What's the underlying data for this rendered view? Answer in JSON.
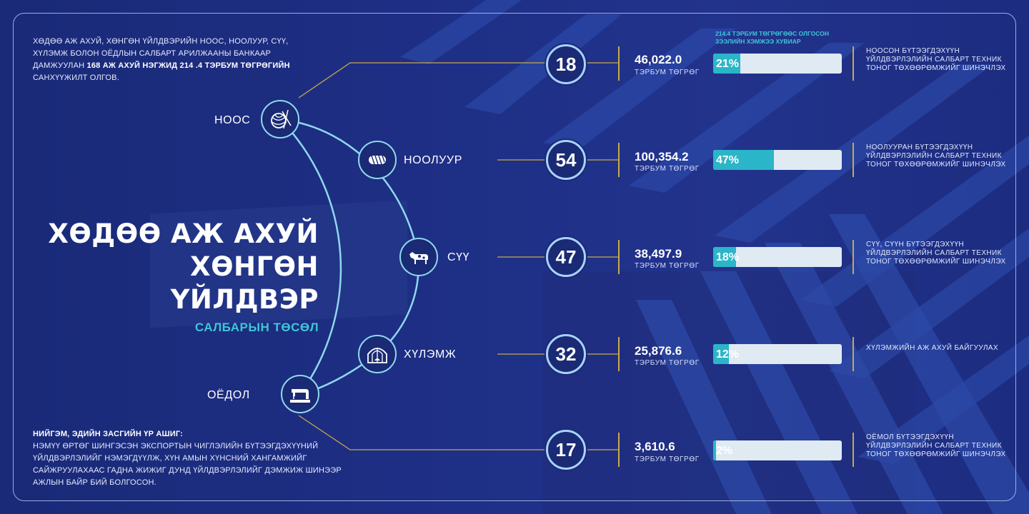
{
  "intro": {
    "text1": "Хөдөө аж ахуй, хөнгөн үйлдвэрийн ноос, ноолуур, сүү, хүлэмж болон оёдлын салбарт арилжааны банкаар дамжуулан ",
    "bold": "168 аж ахуй нэгжид 214 .4 тэрбум төгрөгийн",
    "text2": " санхүүжилт олгов."
  },
  "title": {
    "line1": "ХӨДӨӨ АЖ АХУЙ",
    "line2": "ХӨНГӨН ҮЙЛДВЭР",
    "sub": "САЛБАРЫН ТӨСӨЛ"
  },
  "social": {
    "title": "Нийгэм, эдийн засгийн үр ашиг:",
    "text": "Нэмүү өртөг шингэсэн экспортын чиглэлийн бүтээгдэхүүний үйлдвэрлэлийг нэмэгдүүлж, хүн амын хүнсний хангамжийг сайжруулахаас гадна жижиг дунд үйлдвэрлэлийг дэмжиж шинээр ажлын байр бий болгосон."
  },
  "column_header": "214.4 тэрбум төгрөгөөс олгосон зээлийн хэмжээ хувиар",
  "unit_label": "ТЭРБУМ ТӨГРӨГ",
  "colors": {
    "accent": "#3fc6d6",
    "bar_fill": "#2bb5c8",
    "bar_bg": "#dfeaf3",
    "gold_line": "#c9a94a"
  },
  "rows": [
    {
      "label": "НООС",
      "icon": "yarn-icon",
      "count": "18",
      "amount": "46,022.0",
      "percent_label": "21%",
      "percent": 21,
      "desc": "Ноосон бүтээгдэхүүн үйлдвэрлэлийн салбарт техник тоног төхөөрөмжийг шинэчлэх"
    },
    {
      "label": "НООЛУУР",
      "icon": "wool-roll-icon",
      "count": "54",
      "amount": "100,354.2",
      "percent_label": "47%",
      "percent": 47,
      "desc": "Ноолууран бүтээгдэхүүн үйлдвэрлэлийн салбарт техник тоног төхөөрөмжийг шинэчлэх"
    },
    {
      "label": "СҮҮ",
      "icon": "cow-icon",
      "count": "47",
      "amount": "38,497.9",
      "percent_label": "18%",
      "percent": 18,
      "desc": "Сүү, сүүн бүтээгдэхүүн үйлдвэрлэлийн салбарт техник тоног төхөөрөмжийг шинэчлэх"
    },
    {
      "label": "ХҮЛЭМЖ",
      "icon": "greenhouse-icon",
      "count": "32",
      "amount": "25,876.6",
      "percent_label": "12%",
      "percent": 12,
      "desc": "Хүлэмжийн аж ахуй байгуулах"
    },
    {
      "label": "ОЁДОЛ",
      "icon": "sewing-machine-icon",
      "count": "17",
      "amount": "3,610.6",
      "percent_label": "2%",
      "percent": 2,
      "desc": "Оёмол бүтээгдэхүүн үйлдвэрлэлийн салбарт техник тоног төхөөрөмжийг шинэчлэх"
    }
  ]
}
